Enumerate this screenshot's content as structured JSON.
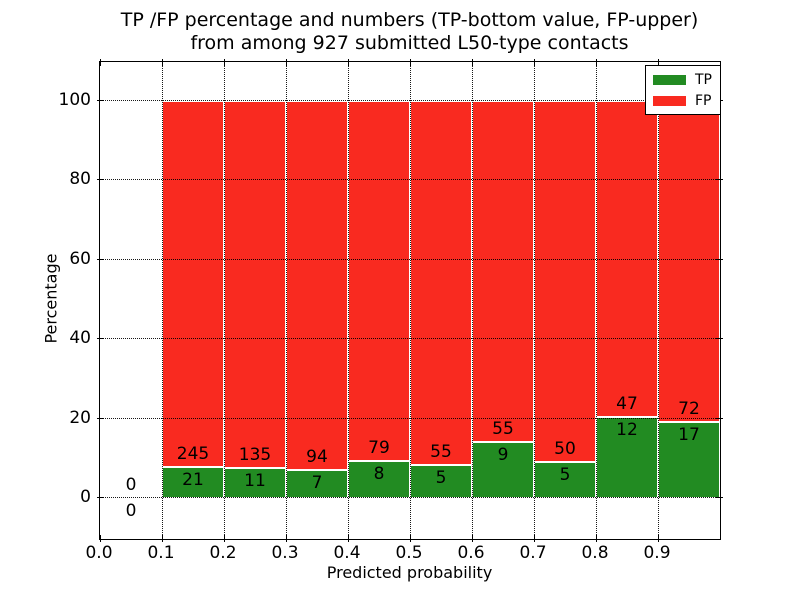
{
  "figure": {
    "title_line1": "TP /FP percentage and numbers (TP-bottom value, FP-upper)",
    "title_line2": "from among 927 submitted L50-type contacts",
    "ylabel": "Percentage",
    "xlabel": "Predicted probability"
  },
  "legend": {
    "items": [
      {
        "label": "TP",
        "color": "#228b22"
      },
      {
        "label": "FP",
        "color": "#f92a20"
      }
    ]
  },
  "chart_data": {
    "type": "bar",
    "stacked": true,
    "title": "TP /FP percentage and numbers (TP-bottom value, FP-upper)\nfrom among 927 submitted L50-type contacts",
    "xlabel": "Predicted probability",
    "ylabel": "Percentage",
    "total_contacts": 927,
    "grid": "dotted",
    "legend_position": "upper right",
    "xlim": [
      0.0,
      1.0
    ],
    "ylim_display": [
      0,
      100
    ],
    "yticks": [
      0,
      20,
      40,
      60,
      80,
      100
    ],
    "xticks": [
      "0.0",
      "0.1",
      "0.2",
      "0.3",
      "0.4",
      "0.5",
      "0.6",
      "0.7",
      "0.8",
      "0.9"
    ],
    "series_colors": {
      "TP": "#228b22",
      "FP": "#f92a20"
    },
    "series": [
      {
        "name": "TP",
        "values": [
          0,
          21,
          11,
          7,
          8,
          5,
          9,
          5,
          12,
          17
        ]
      },
      {
        "name": "FP",
        "values": [
          0,
          245,
          135,
          94,
          79,
          55,
          55,
          50,
          47,
          72
        ]
      }
    ],
    "bins": [
      {
        "x_start": 0.0,
        "x_end": 0.1,
        "tp_count": 0,
        "fp_count": 0,
        "tp_pct": 0.0,
        "fp_pct": 0.0
      },
      {
        "x_start": 0.1,
        "x_end": 0.2,
        "tp_count": 21,
        "fp_count": 245,
        "tp_pct": 7.89,
        "fp_pct": 92.11
      },
      {
        "x_start": 0.2,
        "x_end": 0.3,
        "tp_count": 11,
        "fp_count": 135,
        "tp_pct": 7.53,
        "fp_pct": 92.47
      },
      {
        "x_start": 0.3,
        "x_end": 0.4,
        "tp_count": 7,
        "fp_count": 94,
        "tp_pct": 6.93,
        "fp_pct": 93.07
      },
      {
        "x_start": 0.4,
        "x_end": 0.5,
        "tp_count": 8,
        "fp_count": 79,
        "tp_pct": 9.2,
        "fp_pct": 90.8
      },
      {
        "x_start": 0.5,
        "x_end": 0.6,
        "tp_count": 5,
        "fp_count": 55,
        "tp_pct": 8.33,
        "fp_pct": 91.67
      },
      {
        "x_start": 0.6,
        "x_end": 0.7,
        "tp_count": 9,
        "fp_count": 55,
        "tp_pct": 14.06,
        "fp_pct": 85.94
      },
      {
        "x_start": 0.7,
        "x_end": 0.8,
        "tp_count": 5,
        "fp_count": 50,
        "tp_pct": 9.09,
        "fp_pct": 90.91
      },
      {
        "x_start": 0.8,
        "x_end": 0.9,
        "tp_count": 12,
        "fp_count": 47,
        "tp_pct": 20.34,
        "fp_pct": 79.66
      },
      {
        "x_start": 0.9,
        "x_end": 1.0,
        "tp_count": 17,
        "fp_count": 72,
        "tp_pct": 19.1,
        "fp_pct": 80.9
      }
    ]
  }
}
